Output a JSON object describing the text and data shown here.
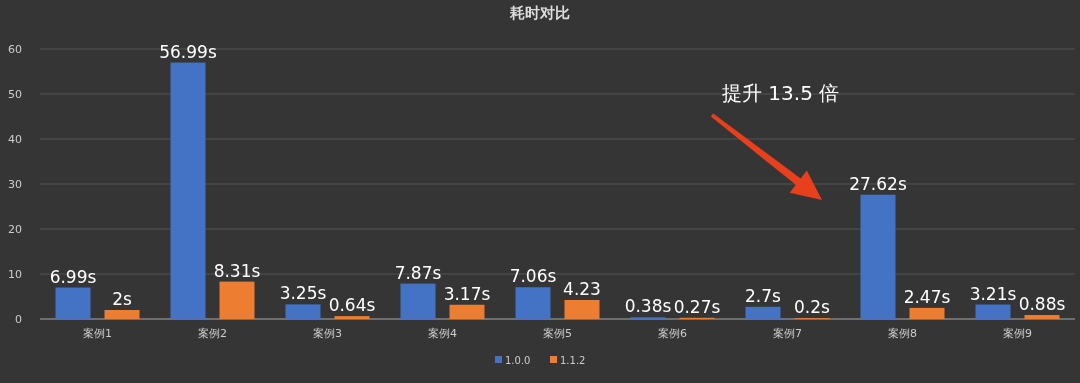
{
  "chart_data": {
    "type": "bar",
    "title": "耗时对比",
    "categories": [
      "案例1",
      "案例2",
      "案例3",
      "案例4",
      "案例5",
      "案例6",
      "案例7",
      "案例8",
      "案例9"
    ],
    "series": [
      {
        "name": "1.0.0",
        "color": "#4472c4",
        "values": [
          6.99,
          56.99,
          3.25,
          7.87,
          7.06,
          0.38,
          2.7,
          27.62,
          3.21
        ],
        "value_labels": [
          "6.99s",
          "56.99s",
          "3.25s",
          "7.87s",
          "7.06s",
          "0.38s",
          "2.7s",
          "27.62s",
          "3.21s"
        ]
      },
      {
        "name": "1.1.2",
        "color": "#ed7d31",
        "values": [
          2,
          8.31,
          0.64,
          3.17,
          4.23,
          0.27,
          0.2,
          2.47,
          0.88
        ],
        "value_labels": [
          "2s",
          "8.31s",
          "0.64s",
          "3.17s",
          "4.23",
          "0.27s",
          "0.2s",
          "2.47s",
          "0.88s"
        ]
      }
    ],
    "ylim": [
      0,
      60
    ],
    "yticks": [
      0,
      10,
      20,
      30,
      40,
      50,
      60
    ],
    "grid": "y",
    "legend": "bottom",
    "annotations": [
      "提升 13.5 倍"
    ]
  }
}
